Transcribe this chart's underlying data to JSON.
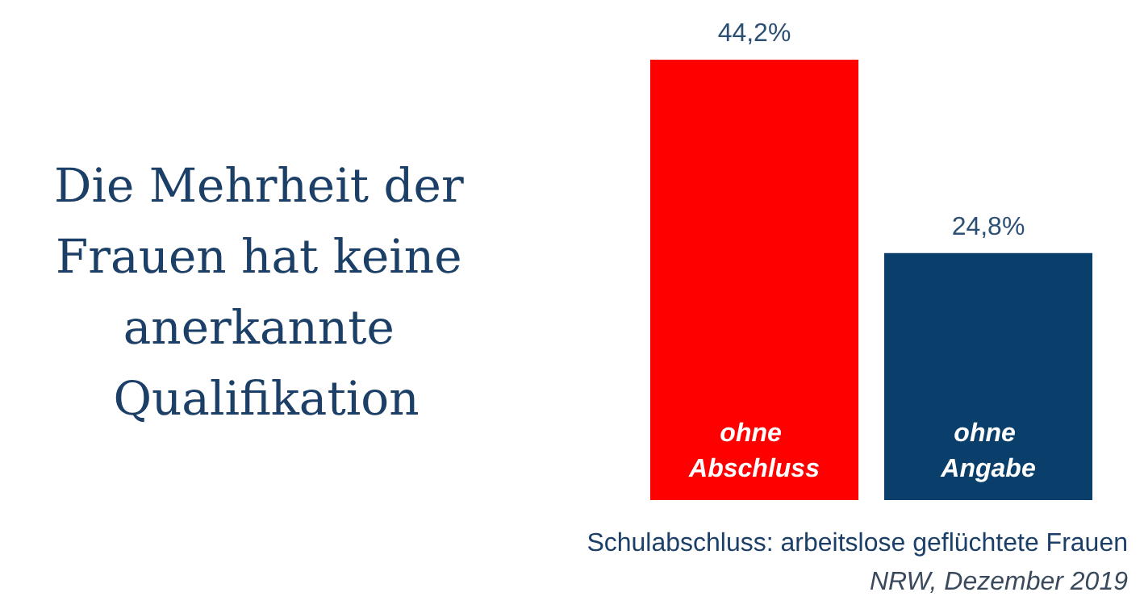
{
  "chart_data": {
    "type": "bar",
    "title": "Die Mehrheit der Frauen hat keine anerkannte Qualifikation",
    "categories": [
      "ohne Abschluss",
      "ohne Angabe"
    ],
    "values": [
      44.2,
      24.8
    ],
    "colors": [
      "#ff0000",
      "#0b3f6b"
    ],
    "value_labels": [
      "44,2%",
      "24,8%"
    ],
    "annotations": [
      "Schulabschluss: arbeitslose geflüchtete Frauen",
      "NRW, Dezember 2019"
    ]
  }
}
